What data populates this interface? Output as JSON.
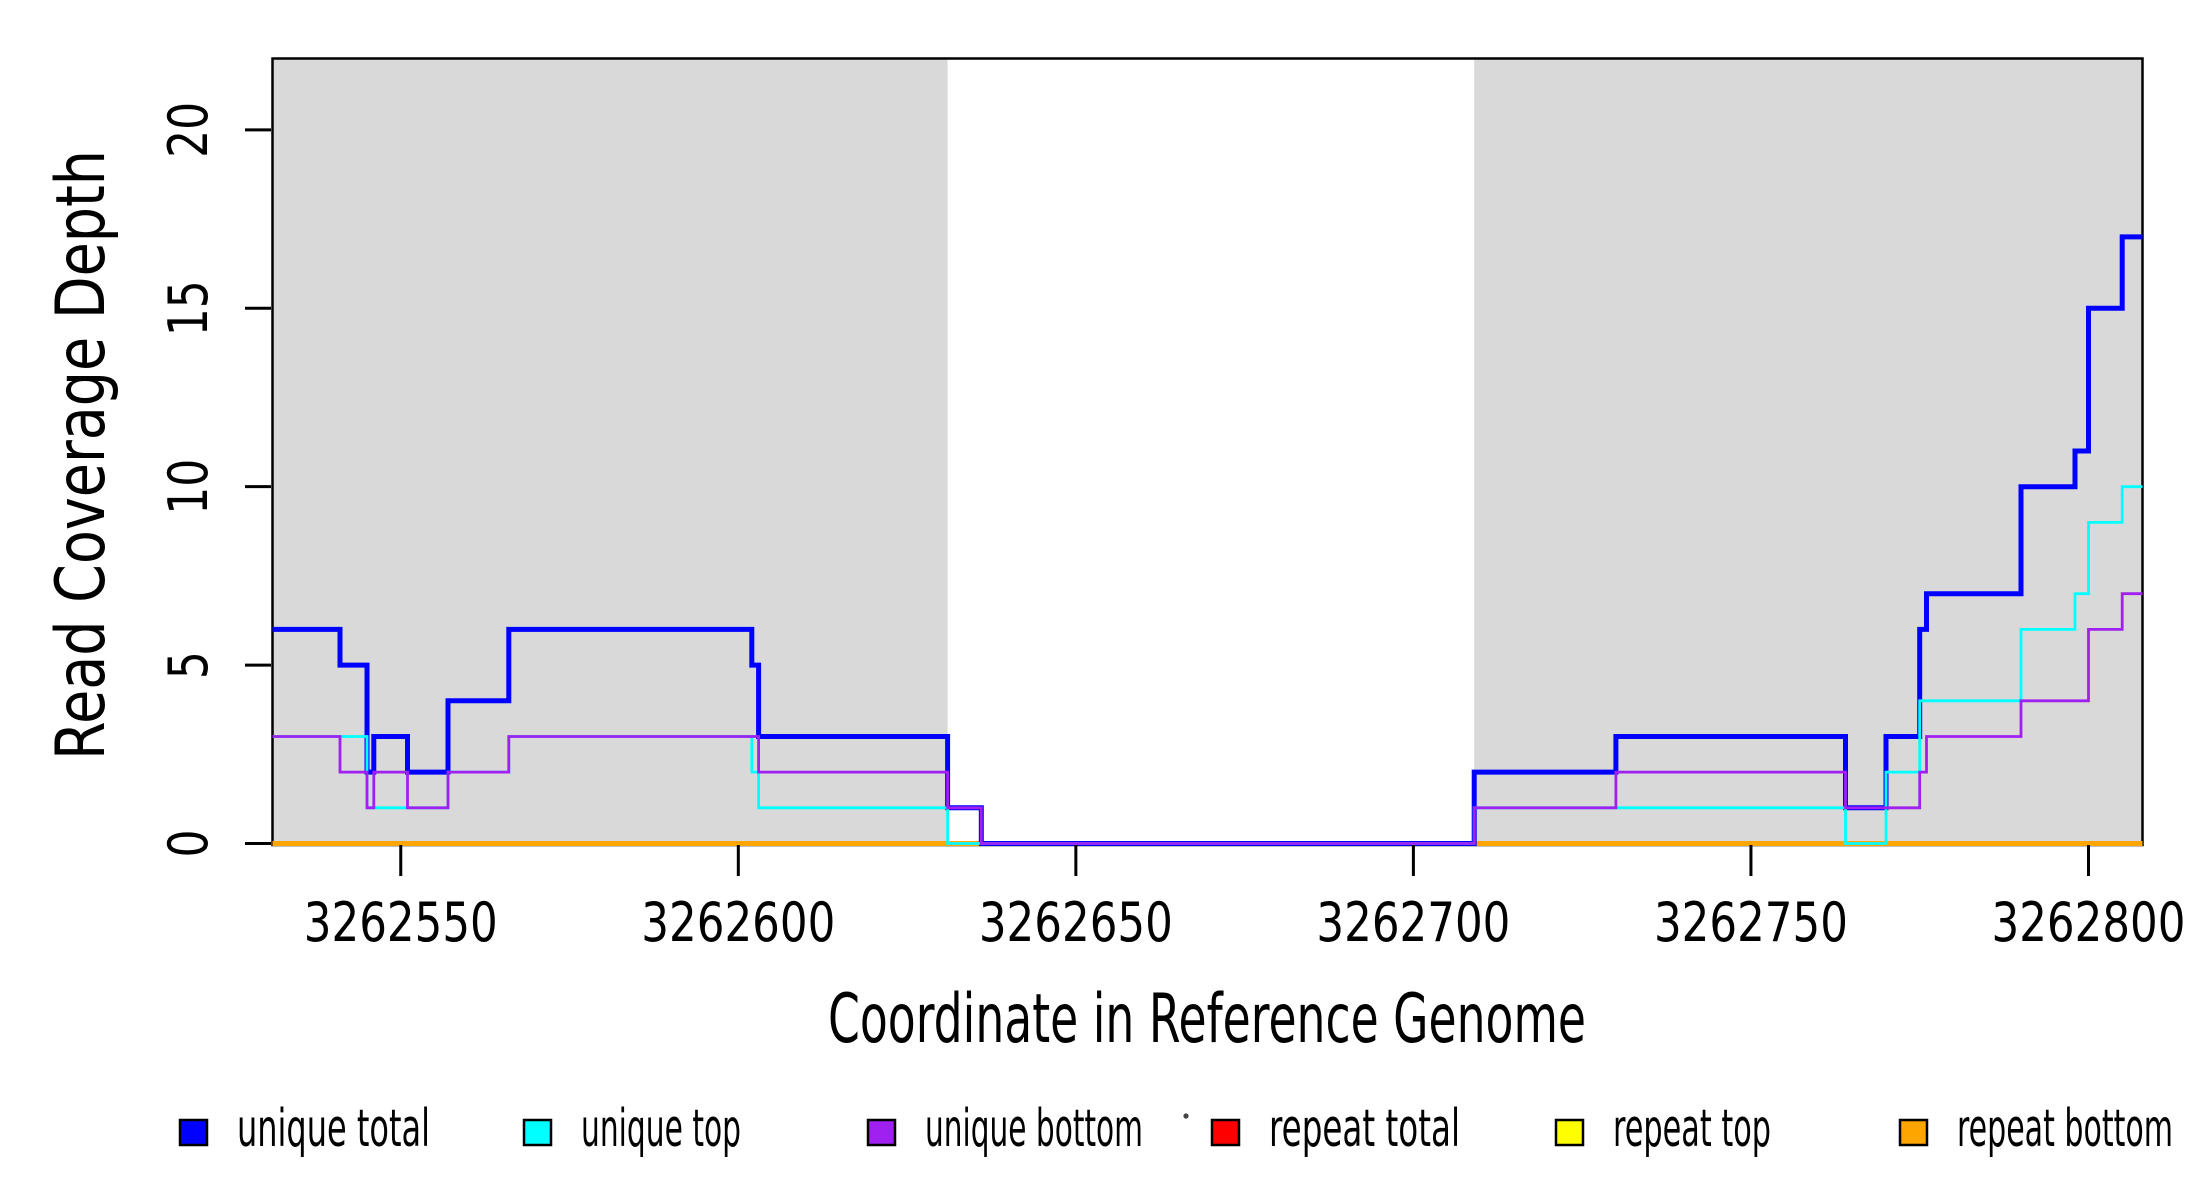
{
  "chart_data": {
    "type": "line",
    "line_style": "step-post",
    "title": "",
    "xlabel": "Coordinate in Reference Genome",
    "ylabel": "Read Coverage Depth",
    "xlim": [
      3262531,
      3262808
    ],
    "ylim": [
      0,
      22
    ],
    "x_ticks": [
      3262550,
      3262600,
      3262650,
      3262700,
      3262750,
      3262800
    ],
    "y_ticks": [
      0,
      5,
      10,
      15,
      20
    ],
    "grid": false,
    "legend_position": "bottom",
    "plot_background": "#ffffff",
    "shaded_region_color": "#d9d9d9",
    "shaded_regions": [
      {
        "x0": 3262531,
        "x1": 3262631
      },
      {
        "x0": 3262709,
        "x1": 3262808
      }
    ],
    "step_x": [
      3262531,
      3262541,
      3262545,
      3262546,
      3262551,
      3262557,
      3262566,
      3262602,
      3262603,
      3262631,
      3262636,
      3262709,
      3262730,
      3262764,
      3262770,
      3262775,
      3262776,
      3262790,
      3262798,
      3262800,
      3262805
    ],
    "x_end": 3262808,
    "series": [
      {
        "name": "unique total",
        "color": "#0000FF",
        "line_width": 5,
        "values": [
          6,
          5,
          2,
          3,
          2,
          4,
          6,
          5,
          3,
          1,
          0,
          2,
          3,
          1,
          3,
          6,
          7,
          10,
          11,
          15,
          17
        ]
      },
      {
        "name": "unique top",
        "color": "#00FFFF",
        "line_width": 2.8,
        "values": [
          3,
          3,
          1,
          1,
          1,
          2,
          3,
          2,
          1,
          0,
          0,
          1,
          1,
          0,
          2,
          4,
          4,
          6,
          7,
          9,
          10
        ]
      },
      {
        "name": "unique bottom",
        "color": "#A020F0",
        "line_width": 2.8,
        "values": [
          3,
          2,
          1,
          2,
          1,
          2,
          3,
          3,
          2,
          1,
          0,
          1,
          2,
          1,
          1,
          2,
          3,
          4,
          4,
          6,
          7
        ]
      },
      {
        "name": "repeat total",
        "color": "#FF0000",
        "line_width": 3,
        "values": [
          0,
          0,
          0,
          0,
          0,
          0,
          0,
          0,
          0,
          0,
          0,
          0,
          0,
          0,
          0,
          0,
          0,
          0,
          0,
          0,
          0
        ]
      },
      {
        "name": "repeat top",
        "color": "#FFFF00",
        "line_width": 3,
        "values": [
          0,
          0,
          0,
          0,
          0,
          0,
          0,
          0,
          0,
          0,
          0,
          0,
          0,
          0,
          0,
          0,
          0,
          0,
          0,
          0,
          0
        ]
      },
      {
        "name": "repeat bottom",
        "color": "#FFA500",
        "line_width": 5,
        "values": [
          0,
          0,
          0,
          0,
          0,
          0,
          0,
          0,
          0,
          0,
          0,
          0,
          0,
          0,
          0,
          0,
          0,
          0,
          0,
          0,
          0
        ]
      }
    ],
    "draw_order": [
      "repeat total",
      "repeat top",
      "repeat bottom",
      "unique total",
      "unique top",
      "unique bottom"
    ],
    "legend": [
      {
        "label": "unique total",
        "color": "#0000FF"
      },
      {
        "label": "unique top",
        "color": "#00FFFF"
      },
      {
        "label": "unique bottom",
        "color": "#A020F0"
      },
      {
        "label": "repeat total",
        "color": "#FF0000"
      },
      {
        "label": "repeat top",
        "color": "#FFFF00"
      },
      {
        "label": "repeat bottom",
        "color": "#FFA500"
      }
    ],
    "axis_color": "#000000",
    "stray_mark": {
      "present": true,
      "color": "#444444"
    }
  }
}
